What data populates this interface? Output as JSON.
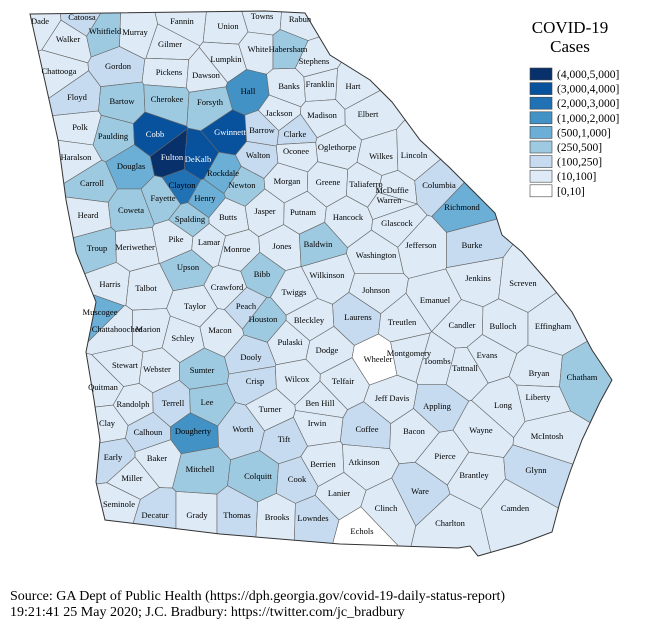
{
  "legend": {
    "title": [
      "COVID-19",
      "Cases"
    ],
    "bins": [
      {
        "label": "(4,000,5,000]",
        "color": "#08306b"
      },
      {
        "label": "(3,000,4,000]",
        "color": "#08519c"
      },
      {
        "label": "(2,000,3,000]",
        "color": "#2171b5"
      },
      {
        "label": "(1,000,2,000]",
        "color": "#4292c6"
      },
      {
        "label": "(500,1,000]",
        "color": "#6baed6"
      },
      {
        "label": "(250,500]",
        "color": "#9ecae1"
      },
      {
        "label": "(100,250]",
        "color": "#c6dbef"
      },
      {
        "label": "(10,100]",
        "color": "#deebf7"
      },
      {
        "label": "[0,10]",
        "color": "#ffffff"
      }
    ]
  },
  "counties": [
    {
      "name": "Dade",
      "bin": 7
    },
    {
      "name": "Catoosa",
      "bin": 6
    },
    {
      "name": "Walker",
      "bin": 7
    },
    {
      "name": "Whitfield",
      "bin": 5
    },
    {
      "name": "Murray",
      "bin": 7
    },
    {
      "name": "Fannin",
      "bin": 7
    },
    {
      "name": "Union",
      "bin": 7
    },
    {
      "name": "Towns",
      "bin": 7
    },
    {
      "name": "Rabun",
      "bin": 7
    },
    {
      "name": "White",
      "bin": 7
    },
    {
      "name": "Habersham",
      "bin": 5
    },
    {
      "name": "Stephens",
      "bin": 7
    },
    {
      "name": "Gilmer",
      "bin": 7
    },
    {
      "name": "Chattooga",
      "bin": 7
    },
    {
      "name": "Gordon",
      "bin": 6
    },
    {
      "name": "Pickens",
      "bin": 7
    },
    {
      "name": "Dawson",
      "bin": 7
    },
    {
      "name": "Lumpkin",
      "bin": 7
    },
    {
      "name": "Hall",
      "bin": 3
    },
    {
      "name": "Banks",
      "bin": 7
    },
    {
      "name": "Franklin",
      "bin": 7
    },
    {
      "name": "Hart",
      "bin": 7
    },
    {
      "name": "Floyd",
      "bin": 6
    },
    {
      "name": "Bartow",
      "bin": 5
    },
    {
      "name": "Cherokee",
      "bin": 5
    },
    {
      "name": "Forsyth",
      "bin": 5
    },
    {
      "name": "Jackson",
      "bin": 7
    },
    {
      "name": "Madison",
      "bin": 7
    },
    {
      "name": "Elbert",
      "bin": 7
    },
    {
      "name": "Polk",
      "bin": 7
    },
    {
      "name": "Paulding",
      "bin": 5
    },
    {
      "name": "Cobb",
      "bin": 1
    },
    {
      "name": "Fulton",
      "bin": 0
    },
    {
      "name": "DeKalb",
      "bin": 1
    },
    {
      "name": "Gwinnett",
      "bin": 1
    },
    {
      "name": "Barrow",
      "bin": 6
    },
    {
      "name": "Clarke",
      "bin": 6
    },
    {
      "name": "Oglethorpe",
      "bin": 7
    },
    {
      "name": "Oconee",
      "bin": 7
    },
    {
      "name": "Haralson",
      "bin": 7
    },
    {
      "name": "Douglas",
      "bin": 4
    },
    {
      "name": "Walton",
      "bin": 6
    },
    {
      "name": "Wilkes",
      "bin": 7
    },
    {
      "name": "Lincoln",
      "bin": 7
    },
    {
      "name": "Carroll",
      "bin": 5
    },
    {
      "name": "Clayton",
      "bin": 2
    },
    {
      "name": "Rockdale",
      "bin": 4
    },
    {
      "name": "Newton",
      "bin": 5
    },
    {
      "name": "Morgan",
      "bin": 7
    },
    {
      "name": "Greene",
      "bin": 7
    },
    {
      "name": "Taliaferro",
      "bin": 7
    },
    {
      "name": "McDuffie",
      "bin": 7
    },
    {
      "name": "Columbia",
      "bin": 6
    },
    {
      "name": "Fayette",
      "bin": 5
    },
    {
      "name": "Henry",
      "bin": 4
    },
    {
      "name": "Warren",
      "bin": 7
    },
    {
      "name": "Richmond",
      "bin": 4
    },
    {
      "name": "Heard",
      "bin": 7
    },
    {
      "name": "Coweta",
      "bin": 5
    },
    {
      "name": "Spalding",
      "bin": 5
    },
    {
      "name": "Butts",
      "bin": 7
    },
    {
      "name": "Jasper",
      "bin": 7
    },
    {
      "name": "Putnam",
      "bin": 7
    },
    {
      "name": "Hancock",
      "bin": 7
    },
    {
      "name": "Glascock",
      "bin": 7
    },
    {
      "name": "Jefferson",
      "bin": 7
    },
    {
      "name": "Burke",
      "bin": 6
    },
    {
      "name": "Troup",
      "bin": 5
    },
    {
      "name": "Meriwether",
      "bin": 7
    },
    {
      "name": "Pike",
      "bin": 7
    },
    {
      "name": "Lamar",
      "bin": 7
    },
    {
      "name": "Monroe",
      "bin": 7
    },
    {
      "name": "Jones",
      "bin": 7
    },
    {
      "name": "Baldwin",
      "bin": 5
    },
    {
      "name": "Washington",
      "bin": 7
    },
    {
      "name": "Upson",
      "bin": 5
    },
    {
      "name": "Bibb",
      "bin": 5
    },
    {
      "name": "Wilkinson",
      "bin": 7
    },
    {
      "name": "Jenkins",
      "bin": 7
    },
    {
      "name": "Screven",
      "bin": 7
    },
    {
      "name": "Harris",
      "bin": 7
    },
    {
      "name": "Talbot",
      "bin": 7
    },
    {
      "name": "Crawford",
      "bin": 7
    },
    {
      "name": "Twiggs",
      "bin": 7
    },
    {
      "name": "Johnson",
      "bin": 7
    },
    {
      "name": "Emanuel",
      "bin": 7
    },
    {
      "name": "Muscogee",
      "bin": 4
    },
    {
      "name": "Taylor",
      "bin": 7
    },
    {
      "name": "Peach",
      "bin": 6
    },
    {
      "name": "Bleckley",
      "bin": 7
    },
    {
      "name": "Laurens",
      "bin": 6
    },
    {
      "name": "Houston",
      "bin": 5
    },
    {
      "name": "Chattahoochee",
      "bin": 7
    },
    {
      "name": "Marion",
      "bin": 7
    },
    {
      "name": "Macon",
      "bin": 7
    },
    {
      "name": "Schley",
      "bin": 7
    },
    {
      "name": "Candler",
      "bin": 7
    },
    {
      "name": "Bulloch",
      "bin": 7
    },
    {
      "name": "Effingham",
      "bin": 7
    },
    {
      "name": "Treutlen",
      "bin": 7
    },
    {
      "name": "Pulaski",
      "bin": 7
    },
    {
      "name": "Dodge",
      "bin": 7
    },
    {
      "name": "Wheeler",
      "bin": 8
    },
    {
      "name": "Montgomery",
      "bin": 7
    },
    {
      "name": "Toombs",
      "bin": 7
    },
    {
      "name": "Evans",
      "bin": 7
    },
    {
      "name": "Tattnall",
      "bin": 7
    },
    {
      "name": "Stewart",
      "bin": 7
    },
    {
      "name": "Webster",
      "bin": 7
    },
    {
      "name": "Sumter",
      "bin": 5
    },
    {
      "name": "Dooly",
      "bin": 6
    },
    {
      "name": "Crisp",
      "bin": 6
    },
    {
      "name": "Wilcox",
      "bin": 7
    },
    {
      "name": "Telfair",
      "bin": 7
    },
    {
      "name": "Bryan",
      "bin": 7
    },
    {
      "name": "Chatham",
      "bin": 5
    },
    {
      "name": "Liberty",
      "bin": 7
    },
    {
      "name": "Quitman",
      "bin": 7
    },
    {
      "name": "Randolph",
      "bin": 7
    },
    {
      "name": "Terrell",
      "bin": 6
    },
    {
      "name": "Lee",
      "bin": 5
    },
    {
      "name": "Ben Hill",
      "bin": 7
    },
    {
      "name": "Jeff Davis",
      "bin": 7
    },
    {
      "name": "Appling",
      "bin": 6
    },
    {
      "name": "Long",
      "bin": 7
    },
    {
      "name": "Clay",
      "bin": 7
    },
    {
      "name": "Calhoun",
      "bin": 6
    },
    {
      "name": "Dougherty",
      "bin": 3
    },
    {
      "name": "Worth",
      "bin": 6
    },
    {
      "name": "Turner",
      "bin": 7
    },
    {
      "name": "Irwin",
      "bin": 7
    },
    {
      "name": "Tift",
      "bin": 6
    },
    {
      "name": "Coffee",
      "bin": 6
    },
    {
      "name": "Bacon",
      "bin": 7
    },
    {
      "name": "Wayne",
      "bin": 7
    },
    {
      "name": "McIntosh",
      "bin": 7
    },
    {
      "name": "Early",
      "bin": 6
    },
    {
      "name": "Baker",
      "bin": 7
    },
    {
      "name": "Mitchell",
      "bin": 5
    },
    {
      "name": "Colquitt",
      "bin": 5
    },
    {
      "name": "Berrien",
      "bin": 7
    },
    {
      "name": "Atkinson",
      "bin": 7
    },
    {
      "name": "Pierce",
      "bin": 7
    },
    {
      "name": "Miller",
      "bin": 7
    },
    {
      "name": "Cook",
      "bin": 6
    },
    {
      "name": "Brantley",
      "bin": 7
    },
    {
      "name": "Glynn",
      "bin": 6
    },
    {
      "name": "Lanier",
      "bin": 7
    },
    {
      "name": "Ware",
      "bin": 6
    },
    {
      "name": "Seminole",
      "bin": 7
    },
    {
      "name": "Decatur",
      "bin": 6
    },
    {
      "name": "Grady",
      "bin": 7
    },
    {
      "name": "Thomas",
      "bin": 6
    },
    {
      "name": "Brooks",
      "bin": 7
    },
    {
      "name": "Lowndes",
      "bin": 6
    },
    {
      "name": "Clinch",
      "bin": 7
    },
    {
      "name": "Charlton",
      "bin": 7
    },
    {
      "name": "Camden",
      "bin": 7
    },
    {
      "name": "Echols",
      "bin": 8
    }
  ],
  "footer": [
    "Source: GA Dept of Public Health (https://dph.georgia.gov/covid-19-daily-status-report)",
    "19:21:41  25 May 2020; J.C. Bradbury: https://twitter.com/jc_bradbury"
  ]
}
